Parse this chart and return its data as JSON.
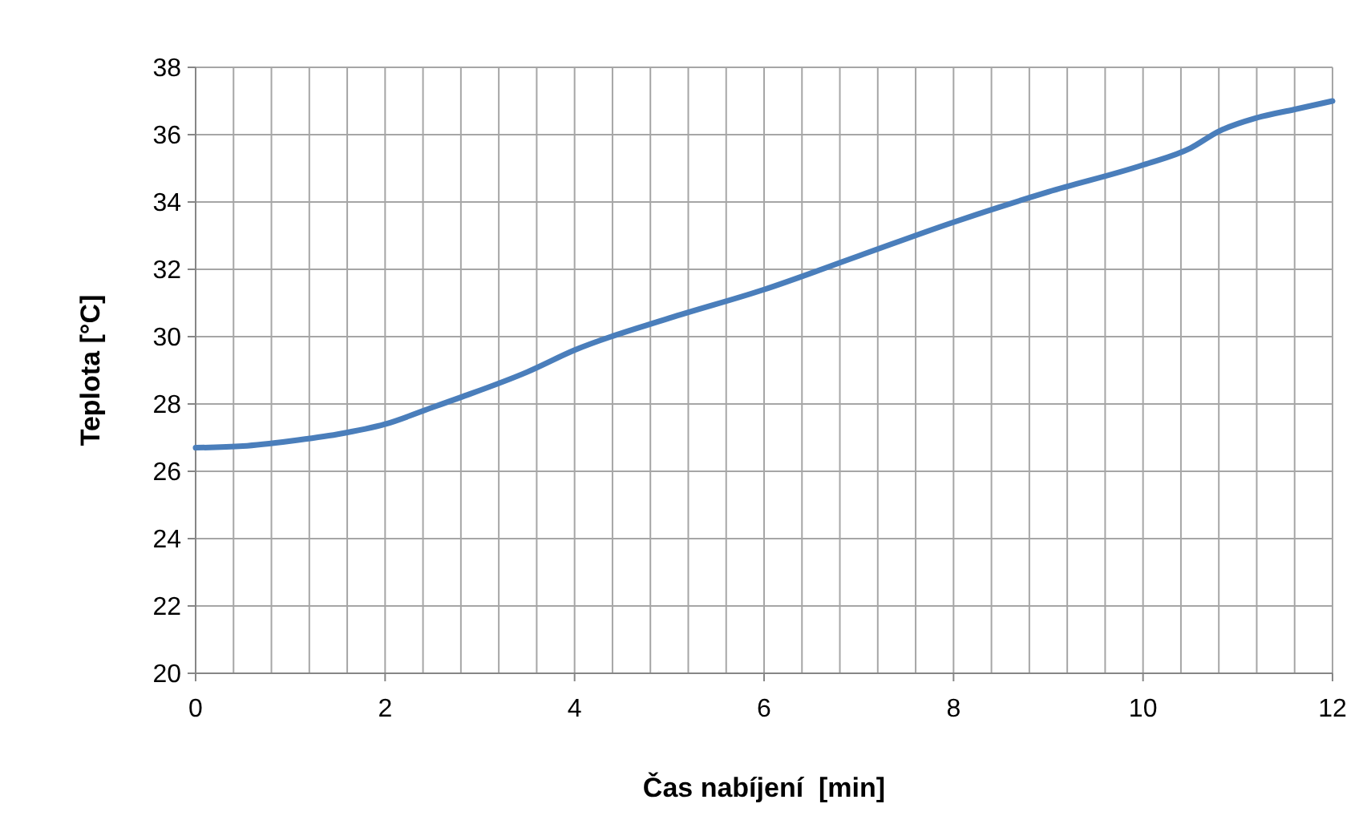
{
  "chart_data": {
    "type": "line",
    "xlabel": "Čas nabíjení  [min]",
    "ylabel": "Teplota [°C]",
    "x": [
      0,
      0.5,
      1,
      1.5,
      2,
      2.5,
      2.8,
      3.5,
      4,
      5,
      6,
      7,
      8,
      9,
      10,
      10.5,
      10.8,
      11.2,
      11.6,
      12
    ],
    "series": [
      {
        "color": "#4a7ebb",
        "values": [
          26.7,
          26.75,
          26.9,
          27.1,
          27.4,
          27.9,
          28.2,
          28.95,
          29.6,
          30.55,
          31.4,
          32.4,
          33.4,
          34.3,
          35.1,
          35.6,
          36.1,
          36.5,
          36.75,
          37.0
        ]
      }
    ],
    "xlim": [
      0,
      12
    ],
    "xticks": [
      0,
      {
        "value": 0.4,
        "label": null
      },
      {
        "value": 0.8,
        "label": null
      },
      {
        "value": 1.2,
        "label": null
      },
      {
        "value": 1.6,
        "label": null
      },
      2,
      {
        "value": 2.4,
        "label": null
      },
      {
        "value": 2.8,
        "label": null
      },
      {
        "value": 3.2,
        "label": null
      },
      {
        "value": 3.6,
        "label": null
      },
      4,
      {
        "value": 4.4,
        "label": null
      },
      {
        "value": 4.8,
        "label": null
      },
      {
        "value": 5.2,
        "label": null
      },
      {
        "value": 5.6,
        "label": null
      },
      6,
      {
        "value": 6.4,
        "label": null
      },
      {
        "value": 6.8,
        "label": null
      },
      {
        "value": 7.2,
        "label": null
      },
      {
        "value": 7.6,
        "label": null
      },
      8,
      {
        "value": 8.4,
        "label": null
      },
      {
        "value": 8.8,
        "label": null
      },
      {
        "value": 9.2,
        "label": null
      },
      {
        "value": 9.6,
        "label": null
      },
      10,
      {
        "value": 10.4,
        "label": null
      },
      {
        "value": 10.8,
        "label": null
      },
      {
        "value": 11.2,
        "label": null
      },
      {
        "value": 11.6,
        "label": null
      },
      12
    ],
    "ylim": [
      20,
      38
    ],
    "yticks": [
      20,
      22,
      24,
      26,
      28,
      30,
      32,
      34,
      36,
      38
    ],
    "grid": true,
    "marker": "none",
    "line_style": "solid"
  }
}
